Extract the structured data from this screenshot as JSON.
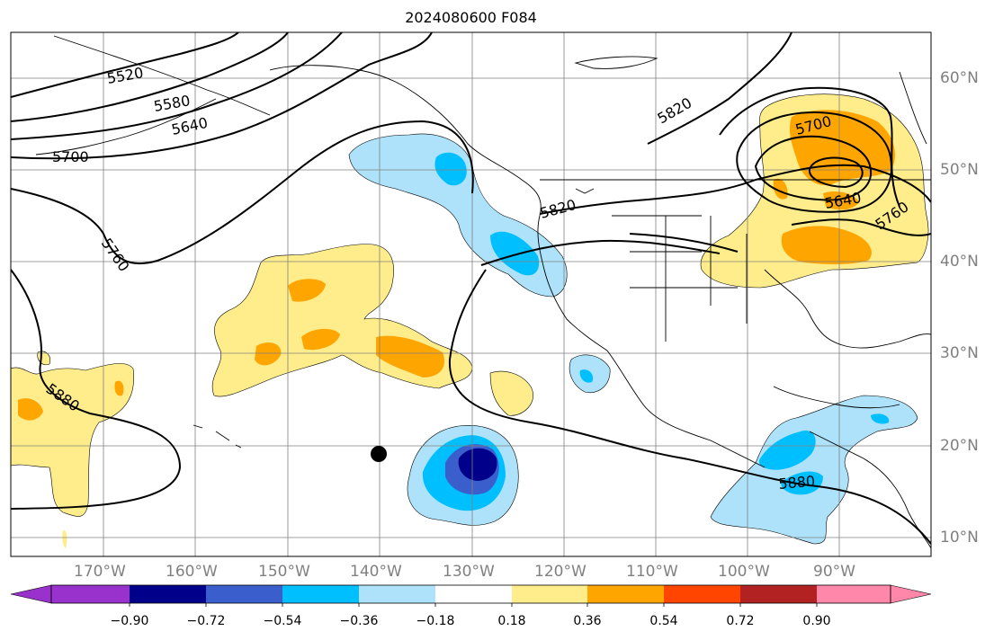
{
  "title": "2024080600 F084",
  "lat_labels": [
    "60°N",
    "50°N",
    "40°N",
    "30°N",
    "20°N",
    "10°N"
  ],
  "lon_labels": [
    "170°W",
    "160°W",
    "150°W",
    "140°W",
    "130°W",
    "120°W",
    "110°W",
    "100°W",
    "90°W"
  ],
  "contour_labels": [
    "5520",
    "5580",
    "5640",
    "5700",
    "5760",
    "5880",
    "5820",
    "5820",
    "5700",
    "5640",
    "5760",
    "5880"
  ],
  "colorbar": {
    "tick_labels": [
      "−0.90",
      "−0.72",
      "−0.54",
      "−0.36",
      "−0.18",
      "0.18",
      "0.36",
      "0.54",
      "0.72",
      "0.90"
    ],
    "colors": [
      "#9932cc",
      "#00008b",
      "#3a5fcd",
      "#00bfff",
      "#ade2fa",
      "#ffffff",
      "#ffec8b",
      "#ffa500",
      "#ff4500",
      "#b22222",
      "#ff88aa"
    ]
  },
  "colors": {
    "land_outline": "#000000",
    "grid": "#808080",
    "pos_1": "#ffec8b",
    "pos_2": "#ffa500",
    "neg_1": "#ade2fa",
    "neg_2": "#00bfff",
    "neg_3": "#3a5fcd",
    "neg_4": "#00008b"
  }
}
